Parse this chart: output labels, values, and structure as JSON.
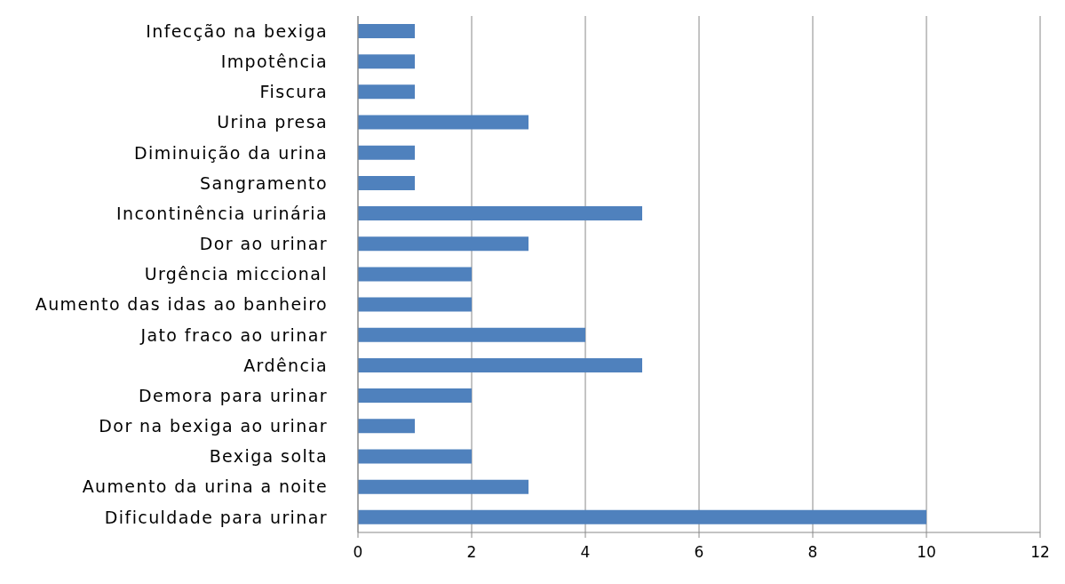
{
  "chart_data": {
    "type": "bar",
    "orientation": "horizontal",
    "categories": [
      "Infecção na bexiga",
      "Impotência",
      "Fiscura",
      "Urina presa",
      "Diminuição da urina",
      "Sangramento",
      "Incontinência urinária",
      "Dor ao urinar",
      "Urgência miccional",
      "Aumento das idas ao banheiro",
      "Jato fraco ao urinar",
      "Ardência",
      "Demora para urinar",
      "Dor na bexiga ao urinar",
      "Bexiga solta",
      "Aumento da urina a noite",
      "Dificuldade para urinar"
    ],
    "values": [
      1,
      1,
      1,
      3,
      1,
      1,
      5,
      3,
      2,
      2,
      4,
      5,
      2,
      1,
      2,
      3,
      10
    ],
    "color": "#4f81bd",
    "xlim": [
      0,
      12
    ],
    "xticks": [
      0,
      2,
      4,
      6,
      8,
      10,
      12
    ],
    "grid": "x"
  }
}
